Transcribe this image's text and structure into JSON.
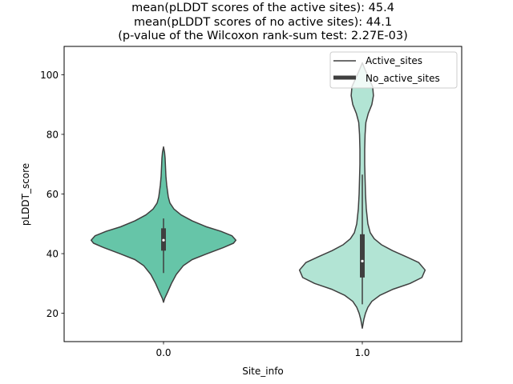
{
  "chart_data": {
    "type": "violin",
    "title": [
      "mean(pLDDT scores of the active sites): 45.4",
      "mean(pLDDT scores of no active sites): 44.1",
      "(p-value of the Wilcoxon rank-sum test: 2.27E-03)"
    ],
    "xlabel": "Site_info",
    "ylabel": "pLDDT_score",
    "xlim": [
      -0.5,
      1.5
    ],
    "ylim": [
      10.5,
      109.5
    ],
    "yticks": [
      20,
      40,
      60,
      80,
      100
    ],
    "categories": [
      "0.0",
      "1.0"
    ],
    "legend": {
      "position": "upper right",
      "entries": [
        {
          "label": "Active_sites",
          "style": "thin-line"
        },
        {
          "label": "No_active_sites",
          "style": "thick-line"
        }
      ]
    },
    "colors": {
      "violin_0": "#66c5a8",
      "violin_1": "#b2e4d4",
      "outline": "#3f3f3f",
      "box": "#3f3f3f",
      "median": "#ffffff"
    },
    "series": [
      {
        "name": "0.0",
        "x": 0,
        "box": {
          "whisker_low": 33.5,
          "q1": 41,
          "median": 44.5,
          "q3": 48.5,
          "whisker_high": 51.8
        },
        "profile": [
          [
            23.7,
            0
          ],
          [
            25,
            0.015
          ],
          [
            27,
            0.05
          ],
          [
            30,
            0.1
          ],
          [
            33,
            0.16
          ],
          [
            36,
            0.25
          ],
          [
            38,
            0.36
          ],
          [
            40,
            0.55
          ],
          [
            42,
            0.75
          ],
          [
            43.5,
            0.88
          ],
          [
            44.5,
            0.91
          ],
          [
            46,
            0.86
          ],
          [
            47.5,
            0.72
          ],
          [
            49,
            0.54
          ],
          [
            51,
            0.36
          ],
          [
            53,
            0.22
          ],
          [
            55,
            0.13
          ],
          [
            57,
            0.08
          ],
          [
            59,
            0.06
          ],
          [
            61,
            0.05
          ],
          [
            63,
            0.04
          ],
          [
            66,
            0.03
          ],
          [
            69,
            0.025
          ],
          [
            72,
            0.02
          ],
          [
            74,
            0.013
          ],
          [
            75.8,
            0
          ]
        ]
      },
      {
        "name": "1.0",
        "x": 1,
        "box": {
          "whisker_low": 23,
          "q1": 32,
          "median": 37.5,
          "q3": 46.5,
          "whisker_high": 66.5
        },
        "profile": [
          [
            15,
            0
          ],
          [
            16.5,
            0.01
          ],
          [
            18,
            0.02
          ],
          [
            20,
            0.04
          ],
          [
            22,
            0.07
          ],
          [
            24,
            0.12
          ],
          [
            26,
            0.22
          ],
          [
            28,
            0.38
          ],
          [
            30,
            0.6
          ],
          [
            32,
            0.75
          ],
          [
            34.5,
            0.79
          ],
          [
            37,
            0.71
          ],
          [
            39,
            0.55
          ],
          [
            41,
            0.38
          ],
          [
            43,
            0.24
          ],
          [
            45,
            0.15
          ],
          [
            47,
            0.1
          ],
          [
            50,
            0.07
          ],
          [
            55,
            0.05
          ],
          [
            60,
            0.04
          ],
          [
            65,
            0.035
          ],
          [
            70,
            0.03
          ],
          [
            75,
            0.03
          ],
          [
            80,
            0.035
          ],
          [
            84,
            0.045
          ],
          [
            87,
            0.075
          ],
          [
            90,
            0.12
          ],
          [
            93,
            0.14
          ],
          [
            96,
            0.13
          ],
          [
            99,
            0.08
          ],
          [
            102,
            0.03
          ],
          [
            104,
            0
          ]
        ]
      }
    ]
  }
}
